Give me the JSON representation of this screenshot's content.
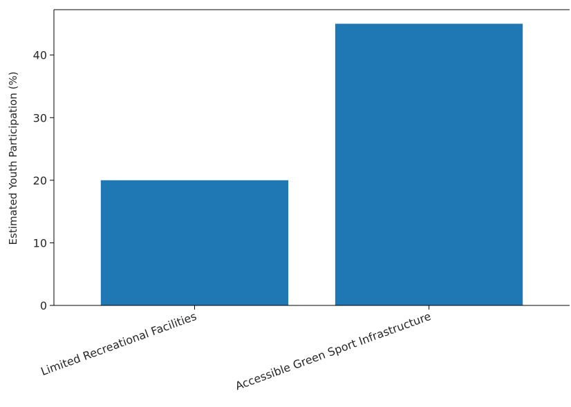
{
  "chart_data": {
    "type": "bar",
    "title": "",
    "xlabel": "",
    "ylabel": "Estimated Youth Participation (%)",
    "categories": [
      "Limited Recreational Facilities",
      "Accessible Green Sport Infrastructure"
    ],
    "values": [
      20,
      45
    ],
    "ylim": [
      0,
      47.25
    ],
    "yticks": [
      0,
      10,
      20,
      30,
      40
    ],
    "bar_color": "#1f77b4",
    "grid": false,
    "legend": "none"
  }
}
